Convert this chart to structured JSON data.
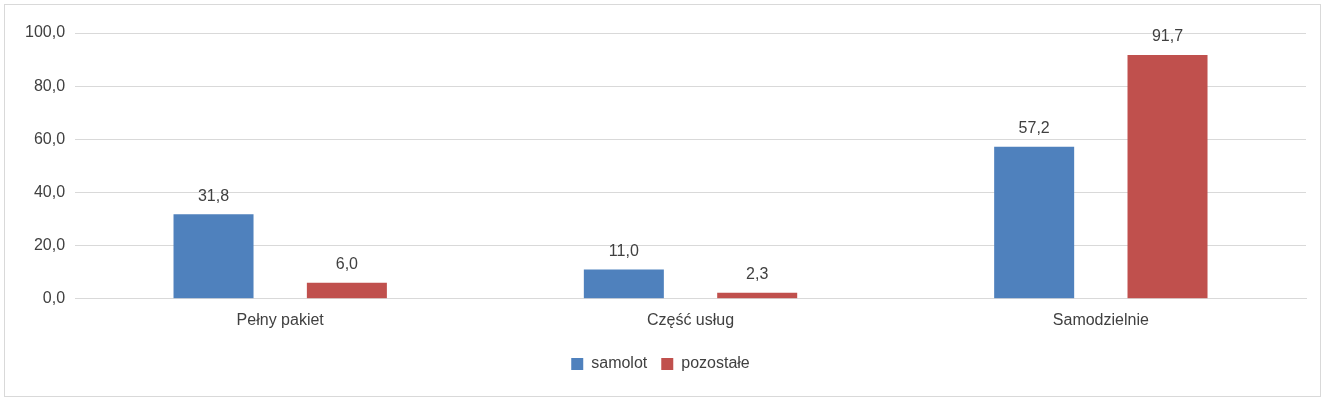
{
  "chart_data": {
    "type": "bar",
    "categories": [
      "Pełny pakiet",
      "Część usług",
      "Samodzielnie"
    ],
    "series": [
      {
        "name": "samolot",
        "color": "#4f81bd",
        "values": [
          31.8,
          11.0,
          57.2
        ],
        "value_labels": [
          "31,8",
          "11,0",
          "57,2"
        ]
      },
      {
        "name": "pozostałe",
        "color": "#c0504d",
        "values": [
          6.0,
          2.3,
          91.7
        ],
        "value_labels": [
          "6,0",
          "2,3",
          "91,7"
        ]
      }
    ],
    "ylim": [
      0,
      100
    ],
    "yticks": [
      {
        "value": 0,
        "label": "0,0"
      },
      {
        "value": 20,
        "label": "20,0"
      },
      {
        "value": 40,
        "label": "40,0"
      },
      {
        "value": 60,
        "label": "60,0"
      },
      {
        "value": 80,
        "label": "80,0"
      },
      {
        "value": 100,
        "label": "100,0"
      }
    ],
    "grid": "y",
    "legend": "bottom"
  }
}
